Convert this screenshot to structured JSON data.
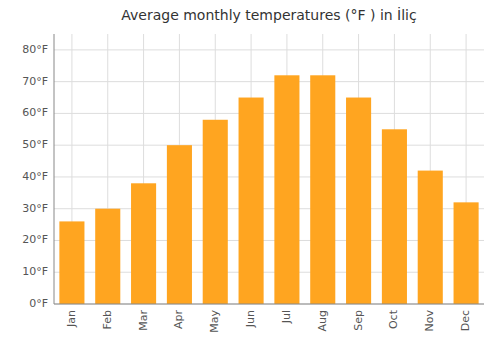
{
  "chart_data": {
    "type": "bar",
    "title": "Average monthly temperatures (°F ) in İliç",
    "categories": [
      "Jan",
      "Feb",
      "Mar",
      "Apr",
      "May",
      "Jun",
      "Jul",
      "Aug",
      "Sep",
      "Oct",
      "Nov",
      "Dec"
    ],
    "values": [
      26,
      30,
      38,
      50,
      58,
      65,
      72,
      72,
      65,
      55,
      42,
      32
    ],
    "color": "#FFA520",
    "ylim": [
      0,
      85
    ],
    "yticks": [
      {
        "value": 0,
        "label": "0°F"
      },
      {
        "value": 10,
        "label": "10°F"
      },
      {
        "value": 20,
        "label": "20°F"
      },
      {
        "value": 30,
        "label": "30°F"
      },
      {
        "value": 40,
        "label": "40°F"
      },
      {
        "value": 50,
        "label": "50°F"
      },
      {
        "value": 60,
        "label": "60°F"
      },
      {
        "value": 70,
        "label": "70°F"
      },
      {
        "value": 80,
        "label": "80°F"
      }
    ],
    "grid": true
  }
}
